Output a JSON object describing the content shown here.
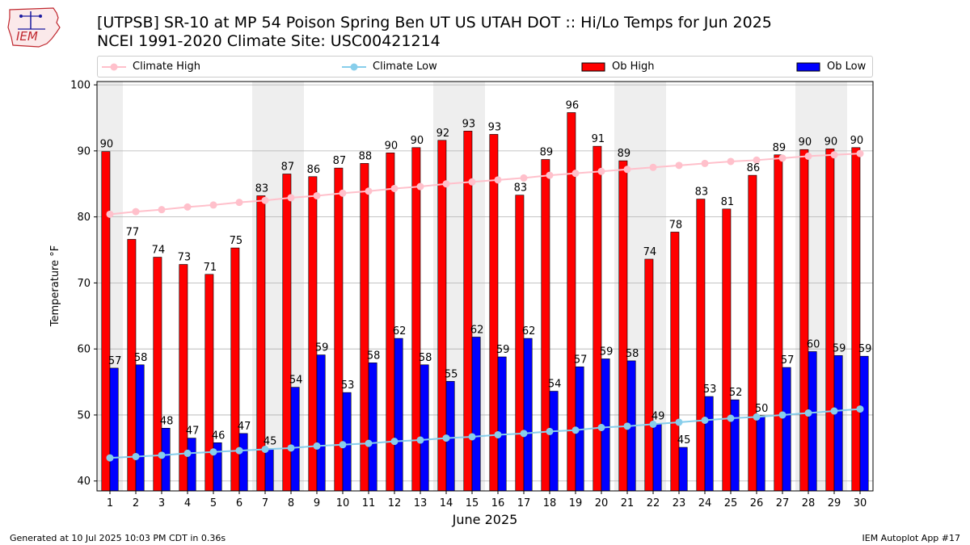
{
  "header": {
    "title_line1": "[UTPSB] SR-10 at MP 54 Poison Spring Ben UT US UTAH DOT :: Hi/Lo Temps for Jun 2025",
    "title_line2": "NCEI 1991-2020 Climate Site: USC00421214",
    "logo_text": "IEM"
  },
  "footer": {
    "generated": "Generated at 10 Jul 2025 10:03 PM CDT in 0.36s",
    "app": "IEM Autoplot App #17"
  },
  "colors": {
    "ob_high": "#ff0000",
    "ob_low": "#0000ff",
    "climate_high": "#ffc0cb",
    "climate_low": "#87ceeb",
    "weekend_shade": "#eeeeee",
    "grid": "#b0b0b0"
  },
  "chart_data": {
    "type": "bar",
    "xlabel": "June 2025",
    "ylabel": "Temperature °F",
    "ylim": [
      38.5,
      100.5
    ],
    "yticks": [
      40,
      50,
      60,
      70,
      80,
      90,
      100
    ],
    "grid": "horizontal",
    "legend_placement": "top",
    "shaded_days": [
      1,
      7,
      8,
      14,
      15,
      21,
      22,
      28,
      29
    ],
    "categories": [
      1,
      2,
      3,
      4,
      5,
      6,
      7,
      8,
      9,
      10,
      11,
      12,
      13,
      14,
      15,
      16,
      17,
      18,
      19,
      20,
      21,
      22,
      23,
      24,
      25,
      26,
      27,
      28,
      29,
      30
    ],
    "series": [
      {
        "name": "Ob High",
        "kind": "bar",
        "values": [
          90,
          77,
          74,
          73,
          71,
          75,
          83,
          87,
          86,
          87,
          88,
          90,
          90,
          92,
          93,
          93,
          83,
          89,
          96,
          91,
          89,
          74,
          78,
          83,
          81,
          86,
          89,
          90,
          90,
          90
        ],
        "bar_values": [
          89.9,
          76.6,
          73.9,
          72.8,
          71.3,
          75.3,
          83.2,
          86.5,
          86.1,
          87.4,
          88.1,
          89.7,
          90.5,
          91.6,
          93.0,
          92.5,
          83.3,
          88.7,
          95.8,
          90.7,
          88.5,
          73.6,
          77.7,
          82.7,
          81.2,
          86.3,
          89.4,
          90.2,
          90.3,
          90.5
        ]
      },
      {
        "name": "Ob Low",
        "kind": "bar",
        "values": [
          57,
          58,
          48,
          47,
          46,
          47,
          45,
          54,
          59,
          53,
          58,
          62,
          58,
          55,
          62,
          59,
          62,
          54,
          57,
          59,
          58,
          49,
          45,
          53,
          52,
          50,
          57,
          60,
          59,
          59
        ],
        "bar_values": [
          57.1,
          57.6,
          48.0,
          46.5,
          45.8,
          47.2,
          44.9,
          54.2,
          59.1,
          53.4,
          57.9,
          61.6,
          57.6,
          55.1,
          61.8,
          58.8,
          61.6,
          53.6,
          57.3,
          58.5,
          58.2,
          48.7,
          45.1,
          52.8,
          52.3,
          49.9,
          57.2,
          59.6,
          59.0,
          58.9
        ]
      },
      {
        "name": "Climate High",
        "kind": "line",
        "values": [
          80.4,
          80.8,
          81.1,
          81.5,
          81.8,
          82.2,
          82.5,
          82.9,
          83.2,
          83.6,
          83.9,
          84.3,
          84.6,
          85.0,
          85.3,
          85.6,
          85.9,
          86.3,
          86.6,
          86.9,
          87.2,
          87.5,
          87.8,
          88.1,
          88.4,
          88.6,
          88.9,
          89.2,
          89.4,
          89.6
        ]
      },
      {
        "name": "Climate Low",
        "kind": "line",
        "values": [
          43.5,
          43.7,
          43.9,
          44.2,
          44.4,
          44.6,
          44.8,
          45.0,
          45.3,
          45.5,
          45.7,
          46.0,
          46.2,
          46.5,
          46.7,
          47.0,
          47.2,
          47.5,
          47.7,
          48.1,
          48.3,
          48.6,
          48.9,
          49.2,
          49.5,
          49.7,
          50.0,
          50.3,
          50.6,
          50.9
        ]
      }
    ]
  }
}
